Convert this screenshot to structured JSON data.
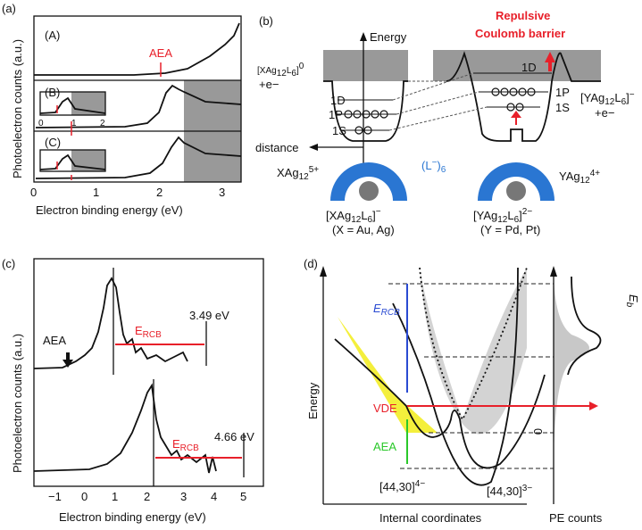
{
  "panel_a": {
    "label": "(a)",
    "sub_labels": [
      "(A)",
      "(B)",
      "(C)"
    ],
    "aea": "AEA",
    "ylabel": "Photoelectron counts (a.u.)",
    "xlabel": "Electron binding energy (eV)",
    "xticks": [
      "0",
      "1",
      "2",
      "3"
    ],
    "inset_ticks": [
      "0",
      "1",
      "2"
    ]
  },
  "panel_b": {
    "label": "(b)",
    "energy": "Energy",
    "barrier": [
      "Repulsive",
      "Coulomb barrier"
    ],
    "left_state": [
      "[XAg",
      "12",
      "L",
      "6",
      "]",
      "0",
      "+e−"
    ],
    "right_state": [
      "[YAg",
      "12",
      "L",
      "6",
      "]",
      "−",
      "+e−"
    ],
    "left_levels": [
      "1D",
      "1P",
      "1S"
    ],
    "right_levels": [
      "1D",
      "1P",
      "1S"
    ],
    "distance": "distance",
    "left_core": [
      "XAg",
      "12",
      "5+"
    ],
    "ligand": [
      "(L",
      "−",
      ")",
      "6"
    ],
    "right_core": [
      "YAg",
      "12",
      "4+"
    ],
    "left_cluster": [
      "[XAg",
      "12",
      "L",
      "6",
      "]",
      "−"
    ],
    "left_note": "(X = Au, Ag)",
    "right_cluster": [
      "[YAg",
      "12",
      "L",
      "6",
      "]",
      "2−"
    ],
    "right_note": "(Y = Pd, Pt)"
  },
  "panel_c": {
    "label": "(c)",
    "ylabel": "Photoelectron counts (a.u.)",
    "aea": "AEA",
    "ercb": [
      "E",
      "RCB"
    ],
    "upper_value": "3.49 eV",
    "lower_value": "4.66 eV",
    "xticks": [
      "−1",
      "0",
      "1",
      "2",
      "3",
      "4",
      "5"
    ],
    "xlabel": "Electron binding energy (eV)"
  },
  "panel_d": {
    "label": "(d)",
    "ylabel": "Energy",
    "ercb": [
      "E",
      "RCB"
    ],
    "vde": "VDE",
    "aea": "AEA",
    "anion4": [
      "[44,30]",
      "4−"
    ],
    "anion3": [
      "[44,30]",
      "3−"
    ],
    "xlabel": "Internal coordinates",
    "pe": "PE counts",
    "eb": [
      "E",
      "b"
    ],
    "zero": "0"
  }
}
